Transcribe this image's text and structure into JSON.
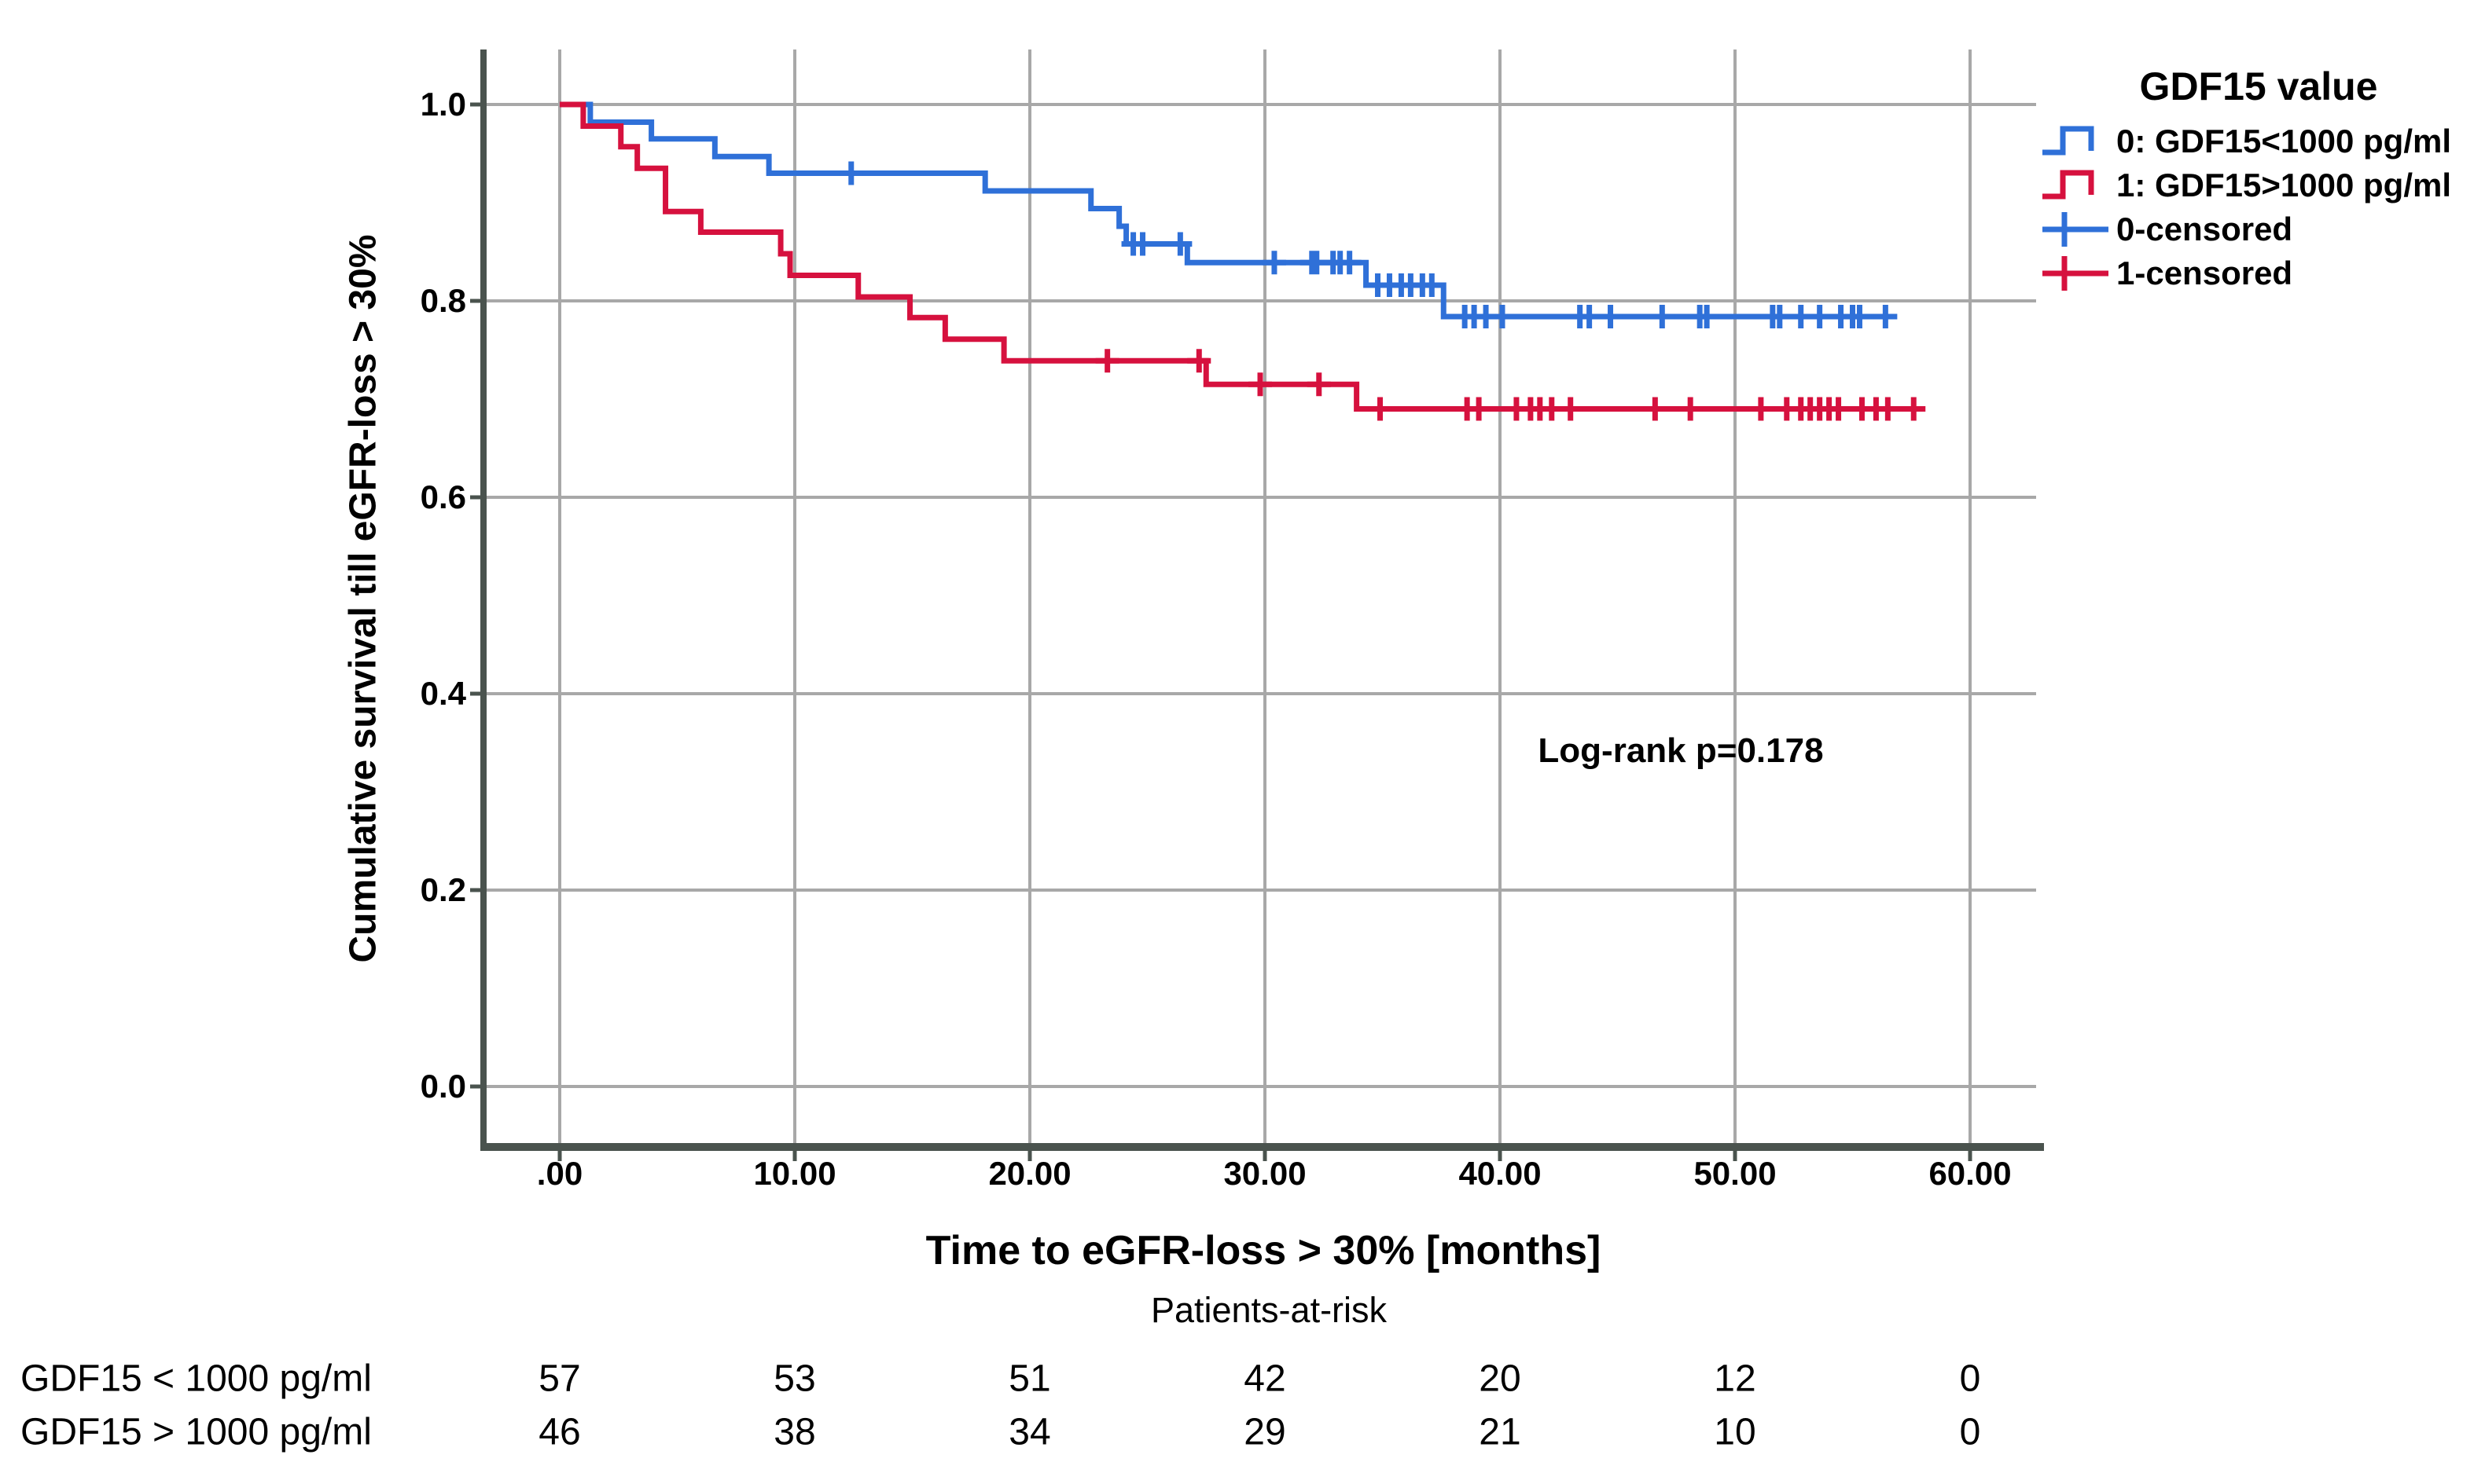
{
  "page": {
    "background": "#ffffff"
  },
  "colors": {
    "blue": "#2f70d8",
    "red": "#d6113e",
    "grid": "#a8a8a8",
    "axis": "#4a534e",
    "text": "#000000"
  },
  "legend": {
    "title": "GDF15 value",
    "entries": [
      {
        "label": "0: GDF15<1000 pg/ml",
        "type": "step-line",
        "color_key": "blue"
      },
      {
        "label": "1: GDF15>1000 pg/ml",
        "type": "step-line",
        "color_key": "red"
      },
      {
        "label": "0-censored",
        "type": "censor-plus",
        "color_key": "blue"
      },
      {
        "label": "1-censored",
        "type": "censor-plus",
        "color_key": "red"
      }
    ]
  },
  "chart_data": {
    "type": "line",
    "subtype": "kaplan-meier-step-function",
    "title": "",
    "xlabel": "Time to eGFR-loss > 30% [months]",
    "ylabel": "Cumulative survival till eGFR-loss > 30%",
    "annotation": "Log-rank p=0.178",
    "grid": true,
    "legend_position": "top-right-outside",
    "xlim": [
      0,
      60
    ],
    "ylim": [
      0.0,
      1.0
    ],
    "x_ticks": [
      {
        "value": 0,
        "label": ".00"
      },
      {
        "value": 10,
        "label": "10.00"
      },
      {
        "value": 20,
        "label": "20.00"
      },
      {
        "value": 30,
        "label": "30.00"
      },
      {
        "value": 40,
        "label": "40.00"
      },
      {
        "value": 50,
        "label": "50.00"
      },
      {
        "value": 60,
        "label": "60.00"
      }
    ],
    "y_ticks": [
      {
        "value": 1.0,
        "label": "1.0"
      },
      {
        "value": 0.8,
        "label": "0.8"
      },
      {
        "value": 0.6,
        "label": "0.6"
      },
      {
        "value": 0.4,
        "label": "0.4"
      },
      {
        "value": 0.2,
        "label": "0.2"
      },
      {
        "value": 0.0,
        "label": "0.0"
      }
    ],
    "series": [
      {
        "name": "0: GDF15<1000 pg/ml",
        "color_key": "blue",
        "n_at_start": 57,
        "steps": [
          [
            0,
            1.0
          ],
          [
            1.3,
            0.982
          ],
          [
            3.9,
            0.965
          ],
          [
            6.6,
            0.947
          ],
          [
            8.9,
            0.93
          ],
          [
            18.1,
            0.912
          ],
          [
            22.6,
            0.894
          ],
          [
            23.8,
            0.876
          ],
          [
            24.1,
            0.858
          ],
          [
            26.7,
            0.839
          ],
          [
            34.3,
            0.816
          ],
          [
            37.6,
            0.784
          ]
        ],
        "end_time": 56.8,
        "censor_times": [
          12.4,
          24.4,
          24.8,
          26.4,
          30.4,
          32.0,
          32.2,
          32.9,
          33.2,
          33.6,
          34.8,
          35.3,
          35.8,
          36.2,
          36.7,
          37.1,
          38.5,
          38.9,
          39.4,
          40.1,
          43.4,
          43.8,
          44.7,
          46.9,
          48.5,
          48.8,
          51.6,
          51.9,
          52.8,
          53.6,
          54.5,
          55.0,
          55.3,
          56.4
        ]
      },
      {
        "name": "1: GDF15>1000 pg/ml",
        "color_key": "red",
        "n_at_start": 46,
        "steps": [
          [
            0,
            1.0
          ],
          [
            1.0,
            0.978
          ],
          [
            2.6,
            0.957
          ],
          [
            3.3,
            0.935
          ],
          [
            4.5,
            0.891
          ],
          [
            6.0,
            0.87
          ],
          [
            9.4,
            0.848
          ],
          [
            9.8,
            0.826
          ],
          [
            12.7,
            0.804
          ],
          [
            14.9,
            0.783
          ],
          [
            16.4,
            0.761
          ],
          [
            18.9,
            0.739
          ],
          [
            27.5,
            0.715
          ],
          [
            33.9,
            0.69
          ]
        ],
        "end_time": 57.9,
        "censor_times": [
          23.3,
          27.2,
          29.8,
          32.3,
          34.9,
          38.6,
          39.1,
          40.7,
          41.3,
          41.7,
          42.2,
          43.0,
          46.6,
          48.1,
          51.1,
          52.2,
          52.8,
          53.2,
          53.6,
          54.0,
          54.4,
          55.4,
          56.0,
          56.5,
          57.6
        ]
      }
    ],
    "at_risk": {
      "title": "Patients-at-risk",
      "times": [
        0,
        10,
        20,
        30,
        40,
        50,
        60
      ],
      "rows": [
        {
          "label": "GDF15 < 1000 pg/ml",
          "counts": [
            57,
            53,
            51,
            42,
            20,
            12,
            0
          ]
        },
        {
          "label": "GDF15 > 1000 pg/ml",
          "counts": [
            46,
            38,
            34,
            29,
            21,
            10,
            0
          ]
        }
      ]
    }
  }
}
